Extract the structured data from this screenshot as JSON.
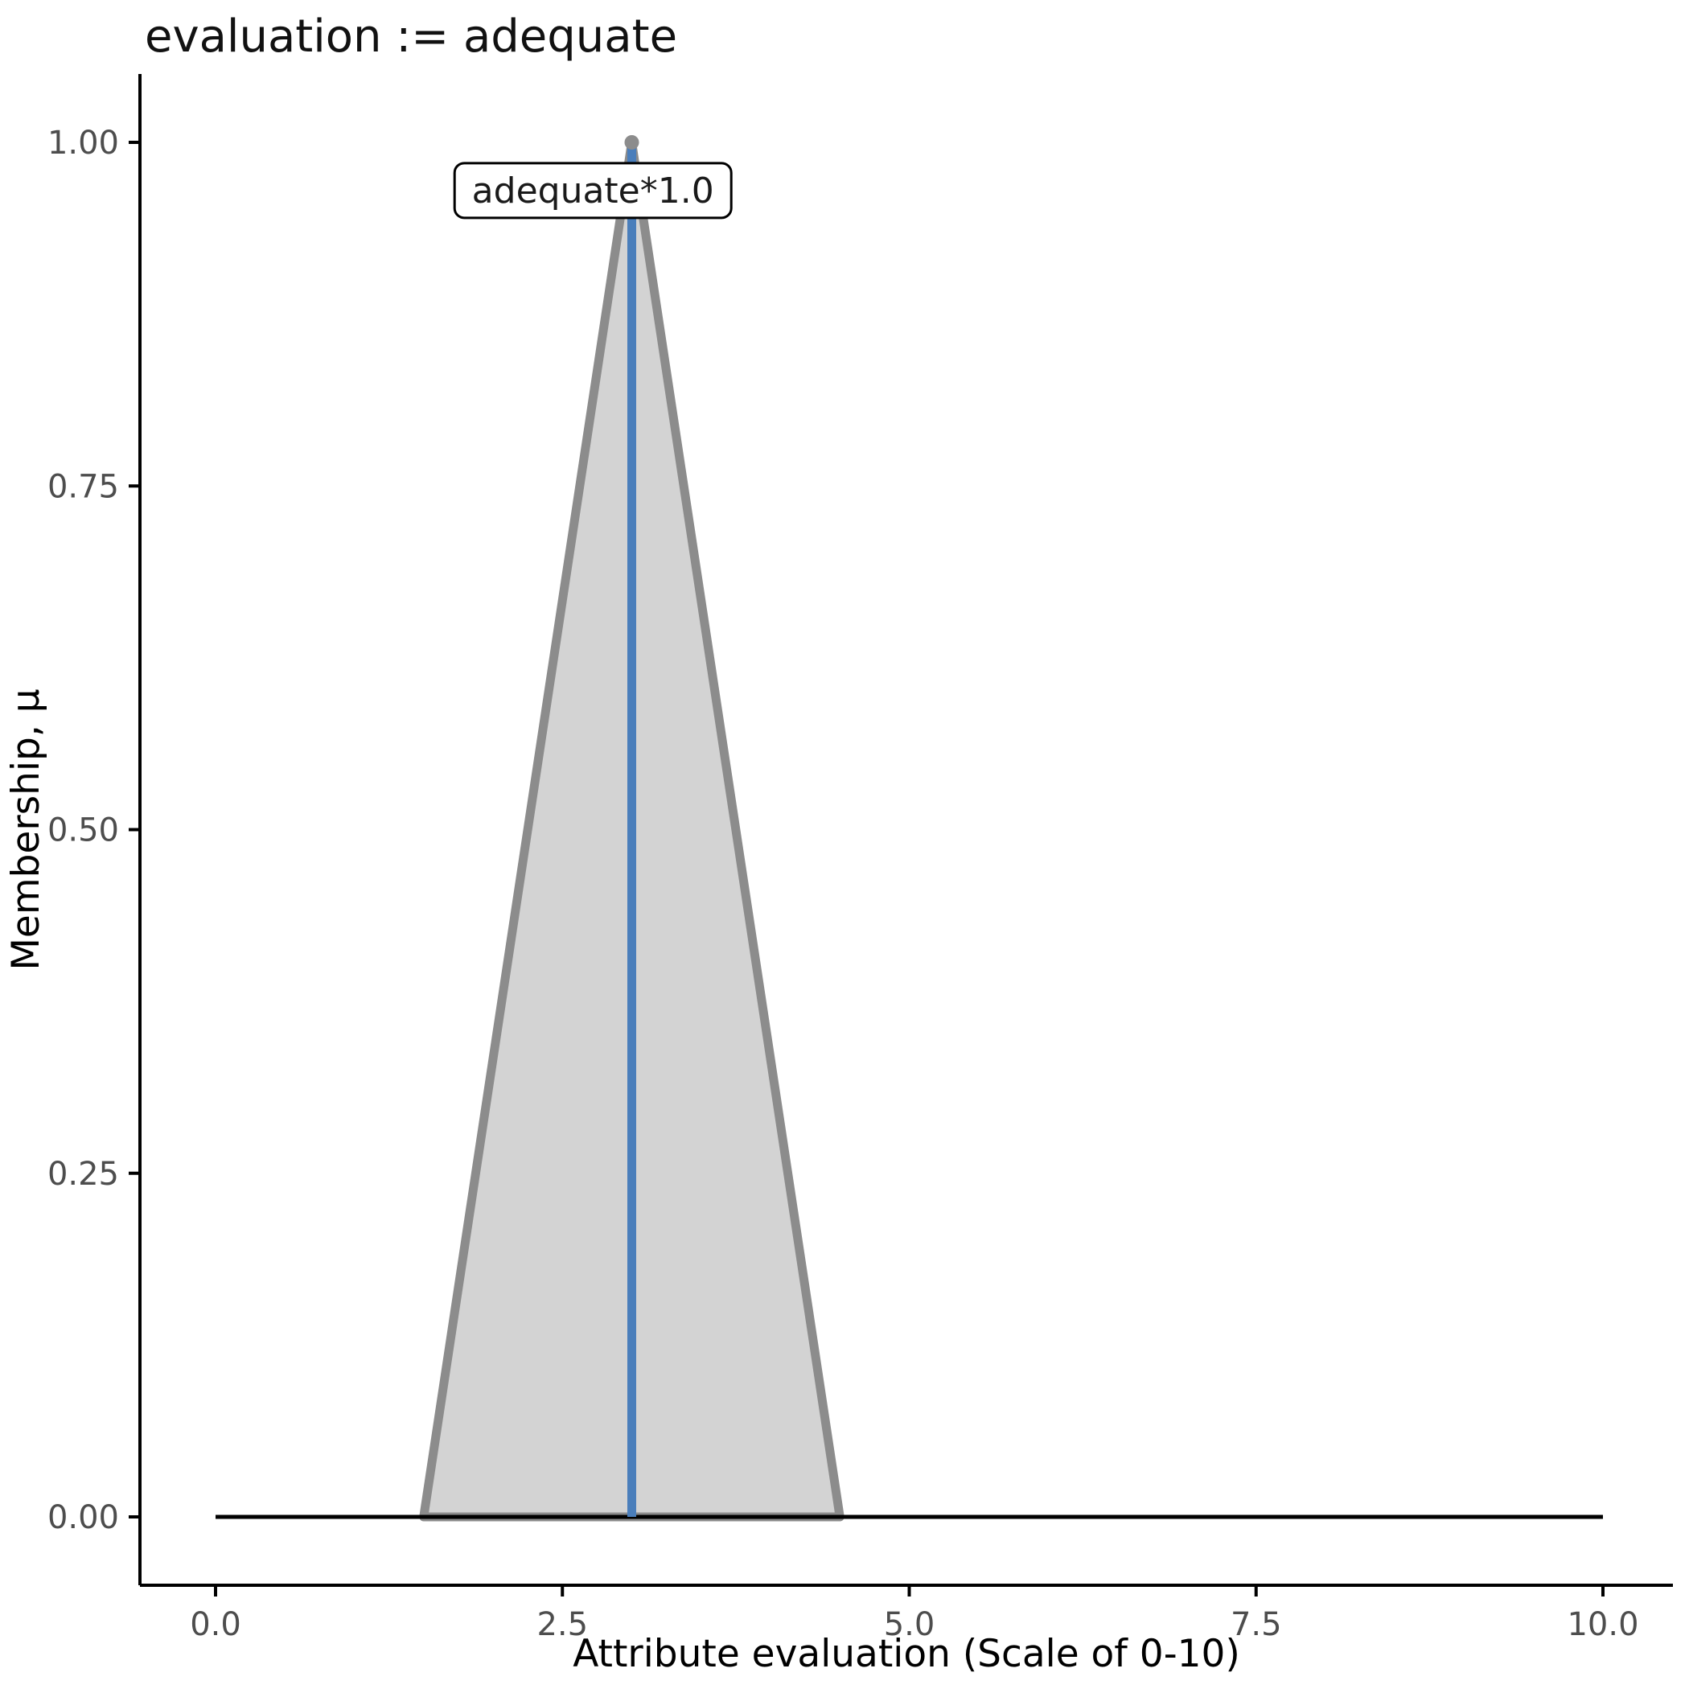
{
  "title": "evaluation := adequate",
  "colors": {
    "triangle_fill": "#d3d3d3",
    "triangle_stroke": "#8c8c8c",
    "defuzzified_line": "#4a7ebb",
    "baseline": "#000000",
    "axis_line": "#000000",
    "tick_text": "#4d4d4d",
    "annotation_fill": "#ffffff",
    "annotation_border": "#000000",
    "peak_point": "#8c8c8c"
  },
  "chart_data": {
    "type": "area",
    "title": "evaluation := adequate",
    "xlabel": "Attribute evaluation (Scale of 0-10)",
    "ylabel": "Membership, μ",
    "xlim": [
      0,
      10
    ],
    "ylim": [
      0,
      1
    ],
    "grid": false,
    "legend": "none",
    "x_ticks": {
      "labels": [
        "0.0",
        "2.5",
        "5.0",
        "7.5",
        "10.0"
      ],
      "values": [
        0,
        2.5,
        5,
        7.5,
        10
      ]
    },
    "y_ticks": {
      "labels": [
        "0.00",
        "0.25",
        "0.50",
        "0.75",
        "1.00"
      ],
      "values": [
        0,
        0.25,
        0.5,
        0.75,
        1
      ]
    },
    "membership_function": {
      "name": "adequate",
      "shape": "triangle",
      "vertices_x": [
        1.5,
        3,
        4.5
      ],
      "vertices_y": [
        0,
        1,
        0
      ]
    },
    "baseline": {
      "x": [
        0,
        10
      ],
      "y": 0
    },
    "defuzzified_line": {
      "x": 3,
      "y0": 0,
      "y1": 1
    },
    "peak_point": {
      "x": 3,
      "y": 1
    },
    "annotation": {
      "text": "adequate*1.0",
      "x": 2.72,
      "y": 0.965
    }
  }
}
